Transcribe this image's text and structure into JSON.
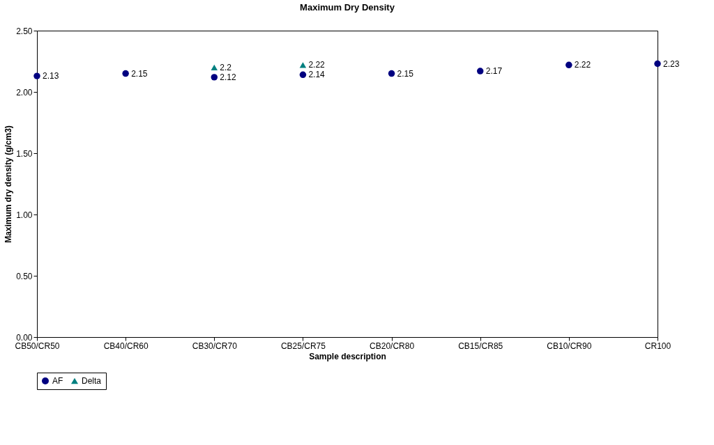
{
  "chart_data": {
    "type": "scatter",
    "title": "Maximum Dry Density",
    "xlabel": "Sample description",
    "ylabel": "Maximum dry density (g/cm3)",
    "categories": [
      "CB50/CR50",
      "CB40/CR60",
      "CB30/CR70",
      "CB25/CR75",
      "CB20/CR80",
      "CB15/CR85",
      "CB10/CR90",
      "CR100"
    ],
    "series": [
      {
        "name": "AF",
        "color": "#000080",
        "marker": "circle",
        "values": [
          2.13,
          2.15,
          2.12,
          2.14,
          2.15,
          2.17,
          2.22,
          2.23
        ]
      },
      {
        "name": "Delta",
        "color": "#008080",
        "marker": "triangle",
        "values": [
          null,
          null,
          2.2,
          2.22,
          null,
          null,
          null,
          null
        ]
      }
    ],
    "ylim": [
      0,
      2.5
    ],
    "yticks": [
      {
        "value": 0,
        "label": "0.00"
      },
      {
        "value": 0.5,
        "label": "0.50"
      },
      {
        "value": 1,
        "label": "1.00"
      },
      {
        "value": 1.5,
        "label": "1.50"
      },
      {
        "value": 2,
        "label": "2.00"
      },
      {
        "value": 2.5,
        "label": "2.50"
      }
    ],
    "data_labels": true,
    "grid": false,
    "legend": "bottom"
  }
}
